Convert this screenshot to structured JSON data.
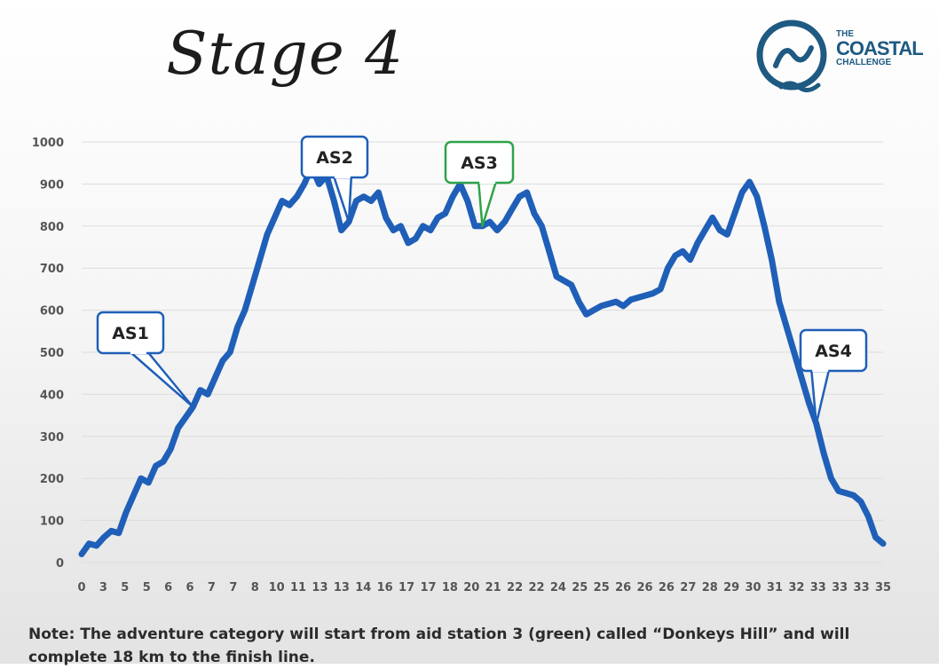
{
  "header": {
    "title": "Stage 4"
  },
  "logo": {
    "line1": "THE",
    "line2": "COASTAL",
    "line3": "CHALLENGE"
  },
  "note": "Note: The adventure category will start from aid station 3 (green) called “Donkeys Hill” and will complete 18 km to the finish line.",
  "colors": {
    "line": "#1f5fb8",
    "callout_blue": "#1f5fb8",
    "callout_green": "#2fa34a",
    "grid": "#dddddd"
  },
  "chart_data": {
    "type": "line",
    "title": "",
    "xlabel": "",
    "ylabel": "",
    "ylim": [
      0,
      1000
    ],
    "yticks": [
      0,
      100,
      200,
      300,
      400,
      500,
      600,
      700,
      800,
      900,
      1000
    ],
    "xtick_labels": [
      "0",
      "3",
      "5",
      "5",
      "6",
      "6",
      "7",
      "7",
      "8",
      "10",
      "11",
      "13",
      "13",
      "14",
      "16",
      "17",
      "17",
      "18",
      "20",
      "21",
      "22",
      "22",
      "24",
      "25",
      "25",
      "26",
      "26",
      "26",
      "27",
      "28",
      "29",
      "30",
      "31",
      "32",
      "33",
      "33",
      "33",
      "35"
    ],
    "grid": "horizontal",
    "series": [
      {
        "values": [
          20,
          45,
          40,
          60,
          75,
          70,
          120,
          160,
          200,
          190,
          230,
          240,
          270,
          320,
          345,
          370,
          410,
          400,
          440,
          480,
          500,
          560,
          600,
          660,
          720,
          780,
          820,
          860,
          850,
          870,
          900,
          940,
          900,
          920,
          860,
          790,
          810,
          860,
          870,
          860,
          880,
          820,
          790,
          800,
          760,
          770,
          800,
          790,
          820,
          830,
          870,
          900,
          860,
          800,
          800,
          810,
          790,
          810,
          840,
          870,
          880,
          830,
          800,
          740,
          680,
          670,
          660,
          620,
          590,
          600,
          610,
          615,
          620,
          610,
          625,
          630,
          635,
          640,
          650,
          700,
          730,
          740,
          720,
          760,
          790,
          820,
          790,
          780,
          830,
          880,
          905,
          870,
          800,
          720,
          620,
          560,
          500,
          440,
          380,
          330,
          260,
          200,
          170,
          165,
          160,
          145,
          110,
          60,
          45
        ]
      }
    ],
    "annotations": [
      {
        "label": "AS1",
        "x_index": 15,
        "color": "blue"
      },
      {
        "label": "AS2",
        "x_index": 36,
        "color": "blue"
      },
      {
        "label": "AS3",
        "x_index": 54,
        "color": "green"
      },
      {
        "label": "AS4",
        "x_index": 99,
        "color": "blue"
      }
    ]
  }
}
